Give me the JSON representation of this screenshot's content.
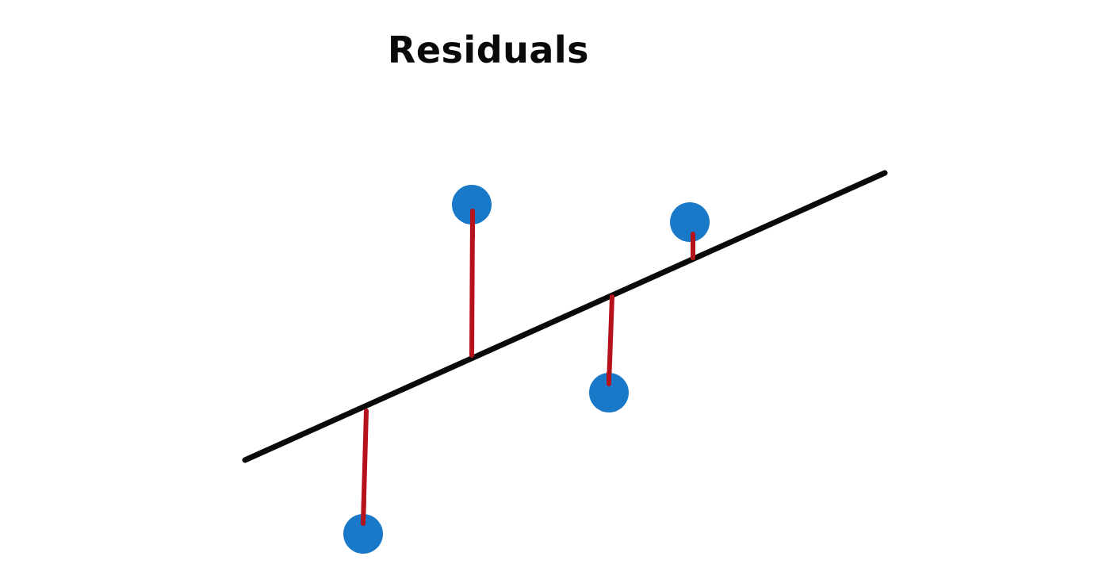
{
  "title": "Residuals",
  "colors": {
    "background": "#ffffff",
    "regression_line": "#0a0a0a",
    "residual_line": "#b5121b",
    "data_point": "#1a78c8"
  },
  "points": [
    {
      "name": "point-1",
      "residual_direction": "below"
    },
    {
      "name": "point-2",
      "residual_direction": "above"
    },
    {
      "name": "point-3",
      "residual_direction": "below"
    },
    {
      "name": "point-4",
      "residual_direction": "above"
    }
  ]
}
